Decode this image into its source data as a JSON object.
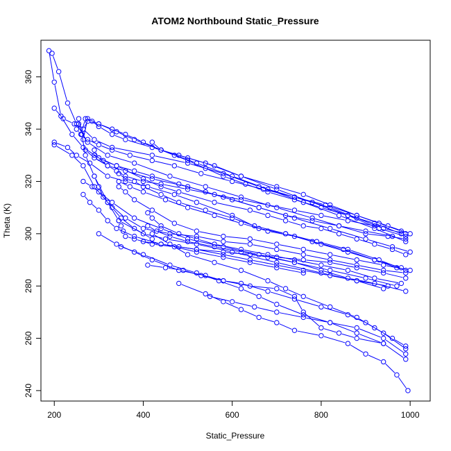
{
  "chart_data": {
    "type": "line",
    "title": "ATOM2 Northbound Static_Pressure",
    "xlabel": "Static_Pressure",
    "ylabel": "Theta (K)",
    "xlim": [
      170,
      1045
    ],
    "ylim": [
      236,
      374
    ],
    "xticks": [
      200,
      400,
      600,
      800,
      1000
    ],
    "yticks": [
      240,
      260,
      280,
      300,
      320,
      340,
      360
    ],
    "grid": false,
    "legend": "none",
    "color": "#0000ff",
    "marker": "open-circle",
    "series": [
      {
        "x": [
          188,
          200,
          215,
          240,
          265,
          300,
          340,
          400,
          440,
          480,
          560,
          640,
          680,
          720,
          760,
          800,
          840,
          880,
          920,
          960,
          990
        ],
        "y": [
          370,
          358,
          345,
          338,
          333,
          329,
          326,
          321,
          318,
          316,
          312,
          309,
          307,
          305,
          303,
          302,
          300,
          298,
          296,
          294,
          292
        ]
      },
      {
        "x": [
          195,
          210,
          230,
          250,
          275,
          320,
          380,
          460,
          540,
          620,
          700,
          780,
          840,
          900,
          950,
          990
        ],
        "y": [
          369,
          362,
          350,
          342,
          335,
          330,
          327,
          322,
          318,
          314,
          310,
          306,
          303,
          300,
          299,
          298
        ]
      },
      {
        "x": [
          200,
          220,
          245,
          265,
          290,
          330,
          420,
          500,
          580,
          660,
          740,
          820,
          880,
          940,
          990
        ],
        "y": [
          348,
          344,
          342,
          340,
          336,
          333,
          330,
          327,
          323,
          318,
          314,
          310,
          306,
          302,
          300
        ]
      },
      {
        "x": [
          200,
          230,
          250,
          280,
          320,
          360,
          410,
          470,
          520,
          600,
          660,
          720,
          780,
          850,
          920,
          970
        ],
        "y": [
          335,
          333,
          330,
          327,
          322,
          320,
          318,
          315,
          312,
          307,
          302,
          300,
          297,
          294,
          290,
          287
        ]
      },
      {
        "x": [
          200,
          240,
          265,
          290,
          320,
          360,
          400,
          460,
          520,
          580,
          640,
          700,
          760,
          820,
          880,
          940,
          990
        ],
        "y": [
          334,
          330,
          326,
          318,
          312,
          306,
          302,
          300,
          299,
          297,
          296,
          294,
          292,
          290,
          288,
          286,
          285
        ]
      },
      {
        "x": [
          255,
          262,
          270,
          290,
          320,
          345,
          400,
          450,
          520,
          600,
          700,
          800,
          880,
          950
        ],
        "y": [
          344,
          338,
          330,
          322,
          312,
          305,
          300,
          298,
          296,
          293,
          289,
          285,
          282,
          280
        ]
      },
      {
        "x": [
          255,
          265,
          275,
          300,
          330,
          360,
          400,
          440,
          500,
          560,
          620,
          700,
          760,
          820,
          880,
          930,
          980
        ],
        "y": [
          342,
          340,
          343,
          342,
          340,
          338,
          335,
          332,
          329,
          326,
          322,
          318,
          315,
          311,
          307,
          304,
          301
        ]
      },
      {
        "x": [
          260,
          270,
          285,
          300,
          330,
          360,
          420,
          480,
          540,
          620,
          700,
          780,
          860,
          930,
          990
        ],
        "y": [
          338,
          344,
          343,
          341,
          338,
          336,
          333,
          330,
          327,
          322,
          317,
          312,
          307,
          302,
          299
        ]
      },
      {
        "x": [
          265,
          275,
          300,
          340,
          380,
          440,
          520,
          600,
          680,
          760,
          840,
          920,
          990
        ],
        "y": [
          336,
          344,
          342,
          339,
          336,
          332,
          327,
          322,
          317,
          312,
          307,
          302,
          297
        ]
      },
      {
        "x": [
          270,
          290,
          320,
          360,
          420,
          500,
          580,
          660,
          740,
          820,
          900,
          960,
          1000
        ],
        "y": [
          332,
          329,
          326,
          324,
          321,
          318,
          314,
          310,
          306,
          302,
          298,
          295,
          293
        ]
      },
      {
        "x": [
          265,
          285,
          300,
          330,
          380,
          440,
          500,
          580,
          660,
          740,
          820,
          900,
          970
        ],
        "y": [
          320,
          318,
          316,
          312,
          306,
          302,
          298,
          295,
          292,
          289,
          286,
          283,
          280
        ]
      },
      {
        "x": [
          265,
          280,
          300,
          320,
          340,
          380,
          440,
          520,
          580,
          640,
          700,
          760,
          820,
          880,
          940
        ],
        "y": [
          315,
          312,
          309,
          305,
          302,
          299,
          296,
          294,
          292,
          290,
          288,
          286,
          284,
          282,
          279
        ]
      },
      {
        "x": [
          345,
          360,
          380,
          400,
          440,
          480,
          540,
          600,
          650,
          720,
          790,
          860,
          930,
          990
        ],
        "y": [
          323,
          321,
          320,
          318,
          315,
          312,
          309,
          306,
          303,
          300,
          297,
          294,
          290,
          286
        ]
      },
      {
        "x": [
          345,
          370,
          400,
          450,
          500,
          560,
          620,
          680,
          740,
          800,
          860,
          920,
          980
        ],
        "y": [
          320,
          318,
          316,
          313,
          310,
          307,
          304,
          301,
          299,
          296,
          293,
          290,
          287
        ]
      },
      {
        "x": [
          345,
          360,
          380,
          420,
          470,
          520,
          580,
          640,
          700,
          760,
          820,
          880,
          940,
          1000
        ],
        "y": [
          318,
          316,
          313,
          309,
          304,
          301,
          299,
          298,
          296,
          294,
          292,
          290,
          288,
          286
        ]
      },
      {
        "x": [
          410,
          420,
          440,
          480,
          520,
          560,
          620,
          680,
          740,
          800,
          860,
          920,
          980
        ],
        "y": [
          308,
          306,
          303,
          300,
          298,
          296,
          294,
          292,
          290,
          288,
          286,
          283,
          281
        ]
      },
      {
        "x": [
          410,
          430,
          460,
          500,
          560,
          620,
          680,
          740,
          800,
          860,
          920,
          990
        ],
        "y": [
          303,
          301,
          299,
          297,
          295,
          293,
          291,
          289,
          286,
          283,
          281,
          278
        ]
      },
      {
        "x": [
          410,
          450,
          490,
          530,
          580,
          640,
          700,
          740,
          760,
          800,
          840,
          880,
          940,
          990
        ],
        "y": [
          288,
          287,
          286,
          284,
          282,
          280,
          279,
          276,
          270,
          264,
          262,
          260,
          258,
          252
        ]
      },
      {
        "x": [
          300,
          340,
          380,
          420,
          480,
          540,
          580,
          620,
          680,
          740,
          800,
          860,
          900,
          940,
          990
        ],
        "y": [
          300,
          296,
          293,
          290,
          286,
          284,
          282,
          281,
          278,
          275,
          272,
          269,
          266,
          262,
          256
        ]
      },
      {
        "x": [
          420,
          460,
          500,
          560,
          620,
          680,
          720,
          760,
          820,
          880,
          920,
          960,
          990
        ],
        "y": [
          300,
          296,
          292,
          289,
          286,
          282,
          279,
          276,
          272,
          268,
          264,
          260,
          257
        ]
      },
      {
        "x": [
          350,
          400,
          460,
          520,
          570,
          620,
          660,
          700,
          760,
          820,
          880,
          940
        ],
        "y": [
          295,
          292,
          288,
          285,
          282,
          279,
          276,
          273,
          269,
          266,
          262,
          258
        ]
      },
      {
        "x": [
          480,
          540,
          580,
          620,
          660,
          700,
          740,
          800,
          860,
          900,
          940,
          970,
          995
        ],
        "y": [
          281,
          277,
          274,
          271,
          268,
          266,
          263,
          261,
          258,
          254,
          251,
          246,
          240
        ]
      },
      {
        "x": [
          550,
          600,
          650,
          700,
          760,
          820,
          880,
          940,
          990
        ],
        "y": [
          276,
          274,
          272,
          270,
          268,
          266,
          264,
          260,
          254
        ]
      },
      {
        "x": [
          400,
          440,
          480,
          520,
          580,
          640,
          700,
          760,
          820,
          880,
          940,
          990
        ],
        "y": [
          297,
          296,
          295,
          294,
          293,
          292,
          291,
          290,
          289,
          287,
          285,
          283
        ]
      },
      {
        "x": [
          290,
          300,
          320,
          340,
          360,
          400,
          440,
          500,
          560,
          620,
          680,
          740,
          800,
          860,
          920
        ],
        "y": [
          332,
          329,
          326,
          324,
          322,
          320,
          319,
          317,
          315,
          313,
          311,
          309,
          307,
          305,
          303
        ]
      },
      {
        "x": [
          290,
          310,
          340,
          380,
          420,
          480,
          540,
          600,
          660,
          720,
          780,
          840,
          900,
          960
        ],
        "y": [
          330,
          328,
          326,
          324,
          322,
          319,
          316,
          313,
          310,
          307,
          305,
          303,
          301,
          299
        ]
      },
      {
        "x": [
          420,
          440,
          470,
          500,
          540,
          580,
          630,
          680,
          740,
          800,
          860,
          920,
          980
        ],
        "y": [
          335,
          332,
          330,
          328,
          325,
          322,
          319,
          316,
          313,
          310,
          307,
          304,
          300
        ]
      },
      {
        "x": [
          250,
          260,
          275,
          300,
          330,
          370,
          420,
          470,
          530,
          600,
          670,
          740,
          810,
          880,
          950,
          1000
        ],
        "y": [
          340,
          338,
          336,
          334,
          332,
          330,
          328,
          326,
          323,
          320,
          317,
          314,
          311,
          307,
          303,
          300
        ]
      },
      {
        "x": [
          290,
          300,
          310,
          330,
          350,
          380,
          420
        ],
        "y": [
          322,
          318,
          314,
          310,
          306,
          302,
          298
        ]
      },
      {
        "x": [
          345,
          350,
          355,
          360,
          380,
          420,
          470,
          520,
          580,
          640,
          700,
          760
        ],
        "y": [
          305,
          303,
          301,
          299,
          298,
          296,
          295,
          293,
          291,
          289,
          287,
          285
        ]
      }
    ]
  }
}
